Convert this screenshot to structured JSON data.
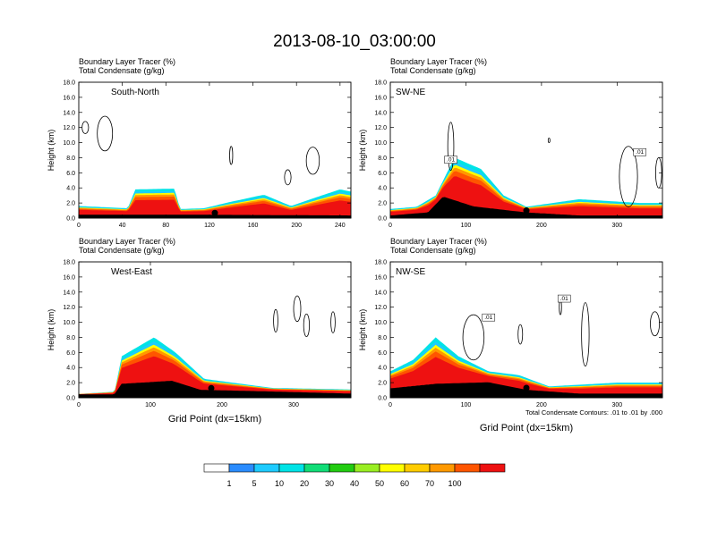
{
  "title": "2013-08-10_03:00:00",
  "header_line1": "Boundary Layer Tracer   (%)",
  "header_line2": "Total Condensate   (g/kg)",
  "ylabel": "Height (km)",
  "xlabel": "Grid Point (dx=15km)",
  "footnote": "Total Condensate Contours: .01 to .01 by .000",
  "contour_label": ".01",
  "colorbar": {
    "colors": [
      "#ffffff",
      "#2a8cff",
      "#1ecbff",
      "#00e3e6",
      "#11dd77",
      "#22cc11",
      "#99ee22",
      "#ffff00",
      "#ffcc00",
      "#ff9900",
      "#ff5500",
      "#ee1111"
    ],
    "labels": [
      "1",
      "5",
      "10",
      "20",
      "30",
      "40",
      "50",
      "60",
      "70",
      "100"
    ]
  },
  "chart_data": [
    {
      "type": "area",
      "label": "South-North",
      "ylim": [
        0,
        18
      ],
      "yticks": [
        "0.0",
        "2.0",
        "4.0",
        "6.0",
        "8.0",
        "10.0",
        "12.0",
        "14.0",
        "16.0",
        "18.0"
      ],
      "xlim": [
        0,
        250
      ],
      "xticks": [
        0,
        40,
        80,
        120,
        160,
        200,
        240
      ],
      "marker_x": 125,
      "terrain": [
        [
          0,
          0.4
        ],
        [
          100,
          0.4
        ],
        [
          250,
          0.3
        ]
      ],
      "tracer_top": [
        [
          0,
          1.6
        ],
        [
          45,
          1.3
        ],
        [
          52,
          3.8
        ],
        [
          88,
          3.9
        ],
        [
          93,
          1.2
        ],
        [
          115,
          1.3
        ],
        [
          135,
          2.0
        ],
        [
          170,
          3.1
        ],
        [
          195,
          1.6
        ],
        [
          215,
          2.6
        ],
        [
          240,
          3.8
        ],
        [
          250,
          3.5
        ]
      ]
    },
    {
      "type": "area",
      "label": "SW-NE",
      "ylim": [
        0,
        18
      ],
      "yticks": [
        "0.0",
        "2.0",
        "4.0",
        "6.0",
        "8.0",
        "10.0",
        "12.0",
        "14.0",
        "16.0",
        "18.0"
      ],
      "xlim": [
        0,
        360
      ],
      "xticks": [
        0,
        100,
        200,
        300
      ],
      "marker_x": 180,
      "terrain": [
        [
          0,
          0.3
        ],
        [
          50,
          0.7
        ],
        [
          70,
          2.8
        ],
        [
          110,
          1.5
        ],
        [
          180,
          0.7
        ],
        [
          250,
          0.3
        ],
        [
          360,
          0.3
        ]
      ],
      "tracer_top": [
        [
          0,
          1.2
        ],
        [
          35,
          1.5
        ],
        [
          60,
          3.0
        ],
        [
          85,
          8.0
        ],
        [
          120,
          6.5
        ],
        [
          150,
          3.0
        ],
        [
          180,
          1.5
        ],
        [
          250,
          2.5
        ],
        [
          330,
          2.0
        ],
        [
          360,
          2.0
        ]
      ]
    },
    {
      "type": "area",
      "label": "West-East",
      "ylim": [
        0,
        18
      ],
      "yticks": [
        "0.0",
        "2.0",
        "4.0",
        "6.0",
        "8.0",
        "10.0",
        "12.0",
        "14.0",
        "16.0",
        "18.0"
      ],
      "xlim": [
        0,
        380
      ],
      "xticks": [
        0,
        100,
        200,
        300
      ],
      "marker_x": 185,
      "terrain": [
        [
          0,
          0.4
        ],
        [
          50,
          0.4
        ],
        [
          60,
          1.8
        ],
        [
          130,
          2.2
        ],
        [
          170,
          1.0
        ],
        [
          260,
          0.8
        ],
        [
          380,
          0.5
        ]
      ],
      "tracer_top": [
        [
          0,
          0.5
        ],
        [
          50,
          0.8
        ],
        [
          60,
          5.5
        ],
        [
          105,
          8.0
        ],
        [
          135,
          6.0
        ],
        [
          175,
          2.5
        ],
        [
          270,
          1.3
        ],
        [
          380,
          1.1
        ]
      ]
    },
    {
      "type": "area",
      "label": "NW-SE",
      "ylim": [
        0,
        18
      ],
      "yticks": [
        "0.0",
        "2.0",
        "4.0",
        "6.0",
        "8.0",
        "10.0",
        "12.0",
        "14.0",
        "16.0",
        "18.0"
      ],
      "xlim": [
        0,
        360
      ],
      "xticks": [
        0,
        100,
        200,
        300
      ],
      "marker_x": 180,
      "terrain": [
        [
          0,
          1.2
        ],
        [
          60,
          1.8
        ],
        [
          130,
          2.0
        ],
        [
          180,
          1.0
        ],
        [
          250,
          0.5
        ],
        [
          360,
          0.5
        ]
      ],
      "tracer_top": [
        [
          0,
          3.5
        ],
        [
          30,
          5.0
        ],
        [
          60,
          8.0
        ],
        [
          90,
          5.5
        ],
        [
          130,
          3.5
        ],
        [
          170,
          3.0
        ],
        [
          210,
          1.5
        ],
        [
          300,
          2.0
        ],
        [
          360,
          2.0
        ]
      ]
    }
  ]
}
